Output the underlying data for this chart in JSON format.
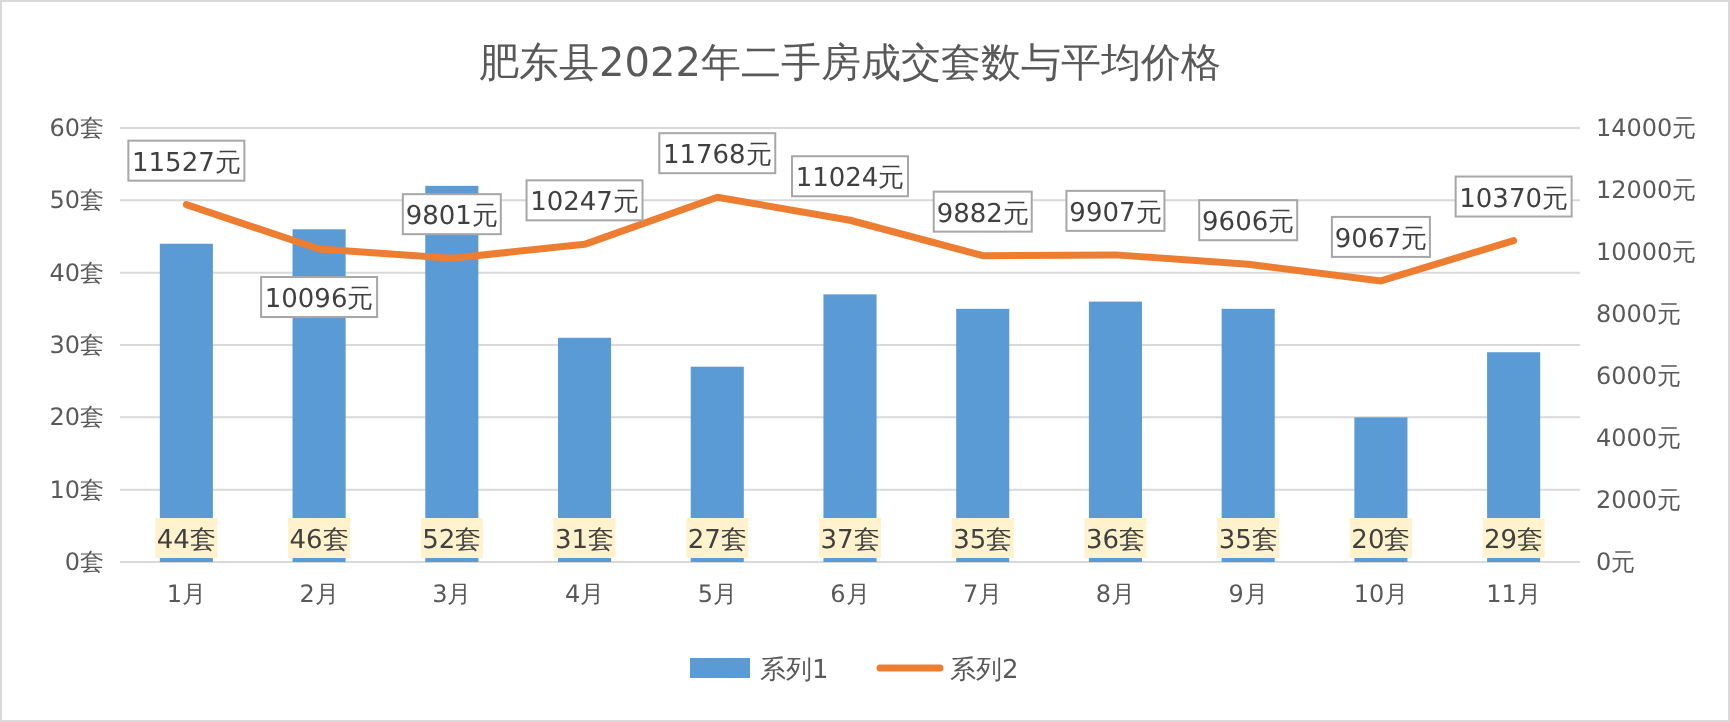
{
  "chart_data": {
    "type": "bar",
    "title": "肥东县2022年二手房成交套数与平均价格",
    "categories": [
      "1月",
      "2月",
      "3月",
      "4月",
      "5月",
      "6月",
      "7月",
      "8月",
      "9月",
      "10月",
      "11月"
    ],
    "series": [
      {
        "name": "系列1",
        "color": "#5b9bd5",
        "values": [
          44,
          46,
          52,
          31,
          27,
          37,
          35,
          36,
          35,
          20,
          29
        ],
        "value_labels": [
          "44套",
          "46套",
          "52套",
          "31套",
          "27套",
          "37套",
          "35套",
          "36套",
          "35套",
          "20套",
          "29套"
        ]
      },
      {
        "name": "系列2",
        "type": "line",
        "axis": "y2",
        "color": "#ed7d31",
        "values": [
          11527,
          10096,
          9801,
          10247,
          11768,
          11024,
          9882,
          9907,
          9606,
          9067,
          10370
        ],
        "value_labels": [
          "11527元",
          "10096元",
          "9801元",
          "10247元",
          "11768元",
          "11024元",
          "9882元",
          "9907元",
          "9606元",
          "9067元",
          "10370元"
        ]
      }
    ],
    "ylim": [
      0,
      60
    ],
    "yticks": [
      {
        "value": 0,
        "label": "0套"
      },
      {
        "value": 10,
        "label": "10套"
      },
      {
        "value": 20,
        "label": "20套"
      },
      {
        "value": 30,
        "label": "30套"
      },
      {
        "value": 40,
        "label": "40套"
      },
      {
        "value": 50,
        "label": "50套"
      },
      {
        "value": 60,
        "label": "60套"
      }
    ],
    "y2lim": [
      0,
      14000
    ],
    "y2ticks": [
      {
        "value": 0,
        "label": "0元"
      },
      {
        "value": 2000,
        "label": "2000元"
      },
      {
        "value": 4000,
        "label": "4000元"
      },
      {
        "value": 6000,
        "label": "6000元"
      },
      {
        "value": 8000,
        "label": "8000元"
      },
      {
        "value": 10000,
        "label": "10000元"
      },
      {
        "value": 12000,
        "label": "12000元"
      },
      {
        "value": 14000,
        "label": "14000元"
      }
    ],
    "grid": "y",
    "legend": "bottom",
    "marker": "none",
    "line_style": "solid"
  }
}
